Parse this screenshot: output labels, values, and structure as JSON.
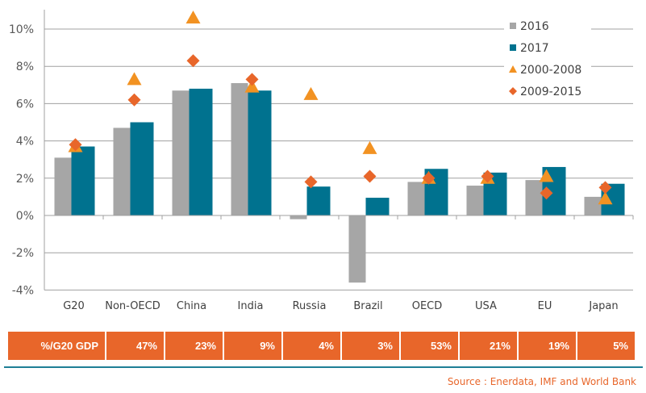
{
  "chart_data": {
    "type": "bar",
    "categories": [
      "G20",
      "Non-OECD",
      "China",
      "India",
      "Russia",
      "Brazil",
      "OECD",
      "USA",
      "EU",
      "Japan"
    ],
    "series": [
      {
        "name": "2016",
        "kind": "bar",
        "color": "#a6a6a6",
        "values": [
          3.1,
          4.7,
          6.7,
          7.1,
          -0.2,
          -3.6,
          1.8,
          1.6,
          1.9,
          1.0
        ]
      },
      {
        "name": "2017",
        "kind": "bar",
        "color": "#00728f",
        "values": [
          3.7,
          5.0,
          6.8,
          6.7,
          1.55,
          0.95,
          2.5,
          2.3,
          2.6,
          1.7
        ]
      },
      {
        "name": "2000-2008",
        "kind": "triangle",
        "color": "#f29222",
        "values": [
          3.7,
          7.3,
          10.6,
          6.9,
          6.5,
          3.6,
          2.0,
          2.0,
          2.1,
          0.9
        ]
      },
      {
        "name": "2009-2015",
        "kind": "diamond",
        "color": "#e8662a",
        "values": [
          3.8,
          6.2,
          8.3,
          7.3,
          1.8,
          2.1,
          2.0,
          2.1,
          1.2,
          1.5
        ]
      }
    ],
    "yticks": [
      "-4%",
      "-2%",
      "0%",
      "2%",
      "4%",
      "6%",
      "8%",
      "10%"
    ],
    "ylim": [
      -4,
      11
    ],
    "grid": true,
    "legend": "top-right",
    "title": "",
    "xlabel": "",
    "ylabel": ""
  },
  "table": {
    "label": "%/G20 GDP",
    "values": [
      "47%",
      "23%",
      "9%",
      "4%",
      "3%",
      "53%",
      "21%",
      "19%",
      "5%"
    ],
    "color": "#e8662a"
  },
  "source": "Source : Enerdata, IMF and World Bank"
}
